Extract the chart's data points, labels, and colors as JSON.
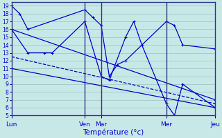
{
  "xlabel": "Température (°c)",
  "background_color": "#c8e8e8",
  "grid_color": "#a0c8c8",
  "line_color": "#0000cc",
  "sep_color": "#333388",
  "day_labels": [
    "Lun",
    "Ven",
    "Mar",
    "Mer",
    "Jeu"
  ],
  "day_positions": [
    0,
    9,
    11,
    19,
    25
  ],
  "ylim": [
    5,
    19.5
  ],
  "xlim": [
    0,
    25
  ],
  "yticks": [
    5,
    6,
    7,
    8,
    9,
    10,
    11,
    12,
    13,
    14,
    15,
    16,
    17,
    18,
    19
  ],
  "series": [
    {
      "x": [
        0,
        1,
        2,
        9,
        10,
        11,
        12,
        13,
        14,
        19,
        20,
        21,
        25
      ],
      "y": [
        19,
        18,
        16,
        18.5,
        17.5,
        16.5,
        10,
        11.5,
        12,
        17,
        16.5,
        14,
        13.5
      ],
      "style": "-",
      "marker": "+"
    },
    {
      "x": [
        0,
        2,
        4,
        5,
        9,
        11,
        12,
        14,
        15,
        16,
        19,
        20,
        21,
        25
      ],
      "y": [
        16,
        13,
        13,
        13,
        17,
        10,
        9.5,
        15,
        17,
        14,
        6.5,
        5,
        9,
        6
      ],
      "style": "-",
      "marker": "+"
    },
    {
      "x": [
        0,
        25
      ],
      "y": [
        16,
        7
      ],
      "style": "-",
      "marker": "+"
    },
    {
      "x": [
        0,
        25
      ],
      "y": [
        12.5,
        6.5
      ],
      "style": "--",
      "marker": "+"
    },
    {
      "x": [
        0,
        25
      ],
      "y": [
        11,
        6
      ],
      "style": "-",
      "marker": "+"
    }
  ]
}
